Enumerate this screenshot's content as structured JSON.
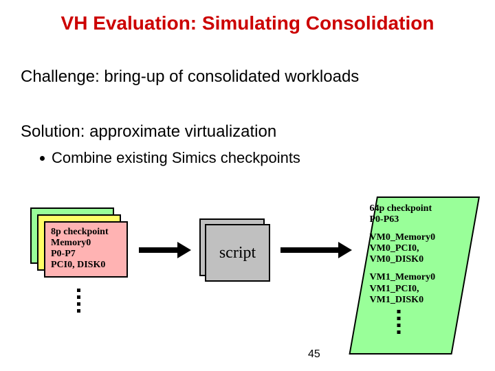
{
  "title": {
    "text": "VH Evaluation: Simulating Consolidation",
    "color": "#cc0000",
    "fontsize": 28
  },
  "body": {
    "challenge": "Challenge:  bring-up of consolidated workloads",
    "solution": "Solution:  approximate virtualization",
    "bullet1": "Combine existing Simics checkpoints",
    "fontsize_main": 24,
    "fontsize_bullet": 22
  },
  "left_card": {
    "lines": "8p checkpoint\nMemory0\nP0-P7\nPCI0, DISK0",
    "fontsize": 14,
    "colors": {
      "back": "#99ff99",
      "mid": "#ffff66",
      "front": "#ffb3b3"
    },
    "border": "#000000"
  },
  "script_box": {
    "label": "script",
    "fontsize": 24,
    "fill": "#c0c0c0",
    "border": "#000000"
  },
  "right_box": {
    "group1": "64p checkpoint\nP0-P63",
    "group2": "VM0_Memory0\nVM0_PCI0,\nVM0_DISK0",
    "group3": "VM1_Memory0\nVM1_PCI0,\nVM1_DISK0",
    "fontsize": 14,
    "fill": "#99ff99",
    "border": "#000000"
  },
  "arrow": {
    "color": "#000000"
  },
  "pagenum": {
    "text": "45",
    "fontsize": 16
  }
}
